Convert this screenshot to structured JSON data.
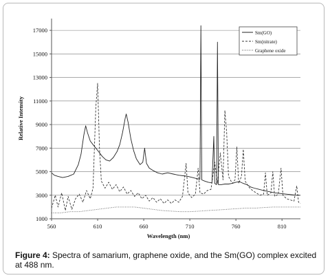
{
  "chart_data": {
    "type": "line",
    "xlabel": "Wavelength (nm)",
    "ylabel": "Relative Intensity",
    "xlim": [
      560,
      830
    ],
    "ylim": [
      1000,
      18000
    ],
    "x_ticks": [
      560,
      610,
      660,
      710,
      760,
      810
    ],
    "y_ticks": [
      1000,
      3000,
      5000,
      7000,
      9000,
      11000,
      13000,
      15000,
      17000
    ],
    "grid": "horizontal",
    "legend_position": "top-right",
    "series": [
      {
        "name": "Sm(GO)",
        "style": "solid",
        "color": "#222222",
        "points": [
          [
            560,
            4900
          ],
          [
            563,
            4700
          ],
          [
            567,
            4600
          ],
          [
            572,
            4500
          ],
          [
            578,
            4600
          ],
          [
            584,
            4800
          ],
          [
            589,
            5600
          ],
          [
            592,
            6500
          ],
          [
            595,
            8100
          ],
          [
            597,
            8900
          ],
          [
            599,
            8300
          ],
          [
            602,
            7600
          ],
          [
            605,
            7300
          ],
          [
            608,
            7000
          ],
          [
            611,
            6700
          ],
          [
            615,
            6300
          ],
          [
            619,
            6000
          ],
          [
            623,
            5900
          ],
          [
            627,
            6200
          ],
          [
            631,
            6700
          ],
          [
            634,
            7300
          ],
          [
            637,
            8300
          ],
          [
            640,
            9600
          ],
          [
            641,
            9900
          ],
          [
            643,
            9200
          ],
          [
            646,
            7800
          ],
          [
            649,
            6800
          ],
          [
            652,
            6100
          ],
          [
            656,
            5600
          ],
          [
            659,
            5800
          ],
          [
            661,
            7000
          ],
          [
            663,
            5700
          ],
          [
            666,
            5300
          ],
          [
            670,
            5100
          ],
          [
            675,
            4900
          ],
          [
            680,
            4800
          ],
          [
            686,
            4900
          ],
          [
            692,
            4800
          ],
          [
            698,
            4700
          ],
          [
            703,
            4650
          ],
          [
            708,
            4600
          ],
          [
            713,
            4500
          ],
          [
            718,
            4400
          ],
          [
            721,
            4350
          ],
          [
            722,
            17400
          ],
          [
            723,
            4300
          ],
          [
            726,
            4200
          ],
          [
            730,
            4100
          ],
          [
            734,
            4050
          ],
          [
            736,
            8000
          ],
          [
            737,
            4000
          ],
          [
            739,
            3900
          ],
          [
            740,
            16000
          ],
          [
            741,
            3900
          ],
          [
            744,
            3900
          ],
          [
            748,
            3950
          ],
          [
            752,
            3950
          ],
          [
            756,
            4000
          ],
          [
            760,
            4100
          ],
          [
            764,
            4150
          ],
          [
            768,
            4000
          ],
          [
            772,
            3900
          ],
          [
            776,
            3700
          ],
          [
            780,
            3600
          ],
          [
            785,
            3500
          ],
          [
            790,
            3400
          ],
          [
            796,
            3300
          ],
          [
            802,
            3200
          ],
          [
            808,
            3150
          ],
          [
            814,
            3100
          ],
          [
            820,
            3050
          ],
          [
            826,
            3000
          ],
          [
            830,
            3000
          ]
        ]
      },
      {
        "name": "Sm(nitrate)",
        "style": "dashed",
        "color": "#333333",
        "points": [
          [
            560,
            1900
          ],
          [
            564,
            3000
          ],
          [
            567,
            2000
          ],
          [
            571,
            3200
          ],
          [
            575,
            1700
          ],
          [
            578,
            2900
          ],
          [
            582,
            1800
          ],
          [
            586,
            2700
          ],
          [
            590,
            3100
          ],
          [
            594,
            2400
          ],
          [
            598,
            3400
          ],
          [
            602,
            2700
          ],
          [
            605,
            3600
          ],
          [
            608,
            10500
          ],
          [
            610,
            12500
          ],
          [
            612,
            7000
          ],
          [
            614,
            4200
          ],
          [
            618,
            3600
          ],
          [
            622,
            4100
          ],
          [
            626,
            3500
          ],
          [
            630,
            3900
          ],
          [
            634,
            3300
          ],
          [
            638,
            3700
          ],
          [
            642,
            3100
          ],
          [
            646,
            3400
          ],
          [
            650,
            2900
          ],
          [
            654,
            3200
          ],
          [
            658,
            2700
          ],
          [
            662,
            3000
          ],
          [
            666,
            2500
          ],
          [
            670,
            2800
          ],
          [
            674,
            2400
          ],
          [
            678,
            2700
          ],
          [
            682,
            2300
          ],
          [
            686,
            2600
          ],
          [
            690,
            2300
          ],
          [
            694,
            2600
          ],
          [
            698,
            2400
          ],
          [
            702,
            2900
          ],
          [
            704,
            4300
          ],
          [
            706,
            5700
          ],
          [
            708,
            3200
          ],
          [
            712,
            2800
          ],
          [
            716,
            3100
          ],
          [
            719,
            5300
          ],
          [
            721,
            3200
          ],
          [
            725,
            3100
          ],
          [
            729,
            3400
          ],
          [
            733,
            3500
          ],
          [
            737,
            5800
          ],
          [
            740,
            4000
          ],
          [
            743,
            6600
          ],
          [
            746,
            4300
          ],
          [
            748,
            10200
          ],
          [
            750,
            8300
          ],
          [
            752,
            4600
          ],
          [
            756,
            4000
          ],
          [
            759,
            4300
          ],
          [
            761,
            7100
          ],
          [
            763,
            4000
          ],
          [
            766,
            4600
          ],
          [
            768,
            6900
          ],
          [
            770,
            4200
          ],
          [
            774,
            3700
          ],
          [
            778,
            3400
          ],
          [
            782,
            3200
          ],
          [
            786,
            3000
          ],
          [
            790,
            3100
          ],
          [
            792,
            4900
          ],
          [
            794,
            3000
          ],
          [
            798,
            3200
          ],
          [
            800,
            5000
          ],
          [
            802,
            2900
          ],
          [
            806,
            3100
          ],
          [
            809,
            5300
          ],
          [
            811,
            3000
          ],
          [
            815,
            2700
          ],
          [
            819,
            2600
          ],
          [
            823,
            2500
          ],
          [
            826,
            3800
          ],
          [
            828,
            2400
          ],
          [
            830,
            2300
          ]
        ]
      },
      {
        "name": "Graphene oxide",
        "style": "dotted",
        "color": "#555555",
        "points": [
          [
            560,
            1500
          ],
          [
            570,
            1500
          ],
          [
            580,
            1600
          ],
          [
            590,
            1600
          ],
          [
            600,
            1700
          ],
          [
            610,
            1800
          ],
          [
            620,
            1900
          ],
          [
            630,
            2000
          ],
          [
            640,
            2000
          ],
          [
            650,
            2000
          ],
          [
            660,
            1900
          ],
          [
            670,
            1800
          ],
          [
            680,
            1700
          ],
          [
            690,
            1650
          ],
          [
            700,
            1600
          ],
          [
            710,
            1600
          ],
          [
            720,
            1650
          ],
          [
            730,
            1700
          ],
          [
            740,
            1750
          ],
          [
            750,
            1800
          ],
          [
            760,
            1850
          ],
          [
            770,
            1900
          ],
          [
            780,
            1900
          ],
          [
            790,
            1950
          ],
          [
            800,
            2000
          ],
          [
            810,
            2000
          ],
          [
            820,
            2000
          ],
          [
            830,
            2000
          ]
        ]
      }
    ]
  },
  "caption": {
    "label": "Figure 4:",
    "text": " Spectra of samarium, graphene oxide, and the Sm(GO) complex excited at 488 nm."
  }
}
